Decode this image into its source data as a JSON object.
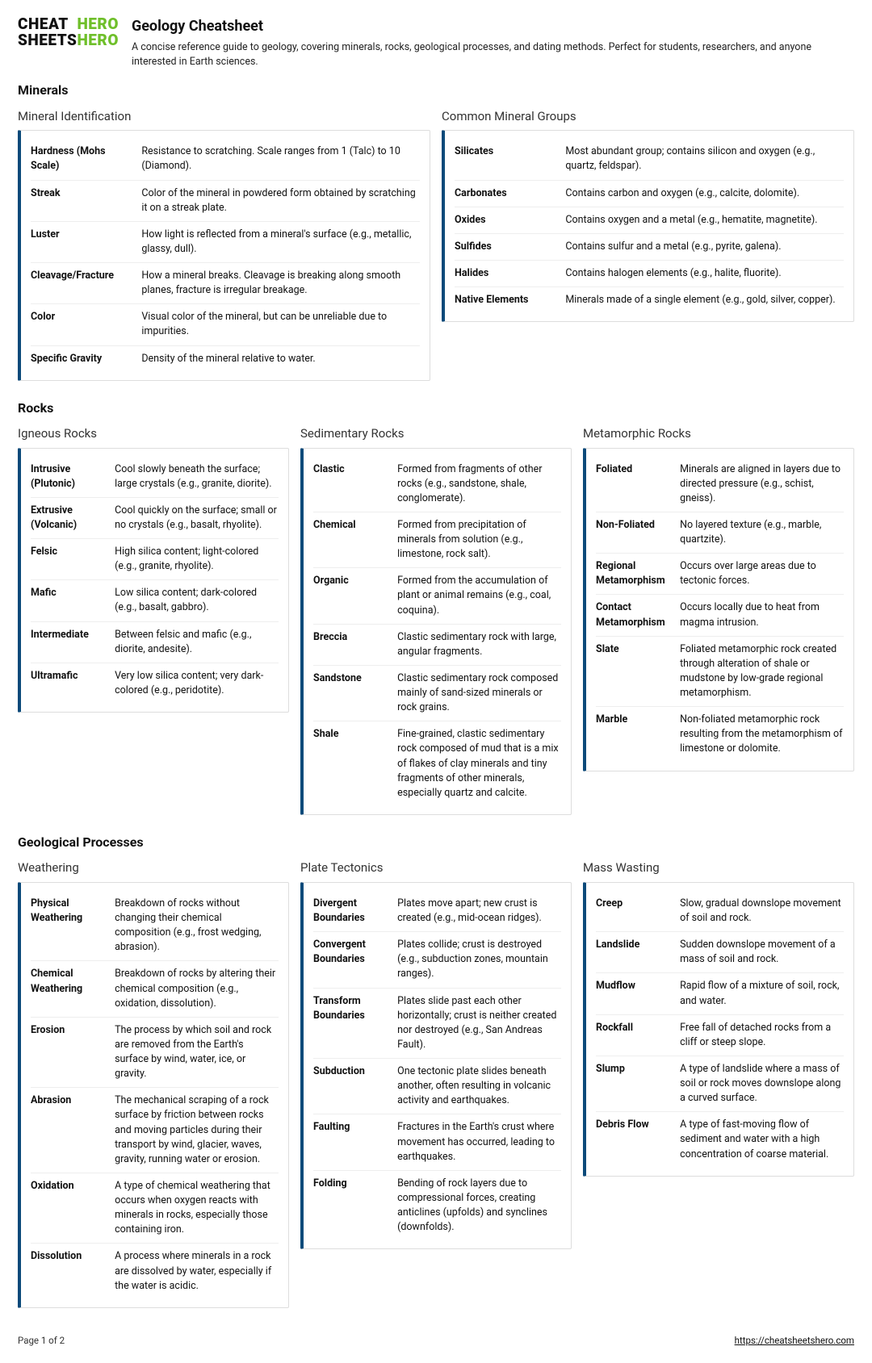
{
  "logo": {
    "l1a": "CHEAT",
    "l1b": "HERO",
    "l2a": "SHEETS",
    "l2b": "HERO"
  },
  "title": "Geology Cheatsheet",
  "subtitle": "A concise reference guide to geology, covering minerals, rocks, geological processes, and dating methods. Perfect for students, researchers, and anyone interested in Earth sciences.",
  "sections": {
    "minerals": {
      "heading": "Minerals",
      "left": {
        "title": "Mineral Identification",
        "rows": [
          {
            "t": "Hardness (Mohs Scale)",
            "d": "Resistance to scratching. Scale ranges from 1 (Talc) to 10 (Diamond)."
          },
          {
            "t": "Streak",
            "d": "Color of the mineral in powdered form obtained by scratching it on a streak plate."
          },
          {
            "t": "Luster",
            "d": "How light is reflected from a mineral's surface (e.g., metallic, glassy, dull)."
          },
          {
            "t": "Cleavage/Fracture",
            "d": "How a mineral breaks. Cleavage is breaking along smooth planes, fracture is irregular breakage."
          },
          {
            "t": "Color",
            "d": "Visual color of the mineral, but can be unreliable due to impurities."
          },
          {
            "t": "Specific Gravity",
            "d": "Density of the mineral relative to water."
          }
        ]
      },
      "right": {
        "title": "Common Mineral Groups",
        "rows": [
          {
            "t": "Silicates",
            "d": "Most abundant group; contains silicon and oxygen (e.g., quartz, feldspar)."
          },
          {
            "t": "Carbonates",
            "d": "Contains carbon and oxygen (e.g., calcite, dolomite)."
          },
          {
            "t": "Oxides",
            "d": "Contains oxygen and a metal (e.g., hematite, magnetite)."
          },
          {
            "t": "Sulfides",
            "d": "Contains sulfur and a metal (e.g., pyrite, galena)."
          },
          {
            "t": "Halides",
            "d": "Contains halogen elements (e.g., halite, fluorite)."
          },
          {
            "t": "Native Elements",
            "d": "Minerals made of a single element (e.g., gold, silver, copper)."
          }
        ]
      }
    },
    "rocks": {
      "heading": "Rocks",
      "c1": {
        "title": "Igneous Rocks",
        "rows": [
          {
            "t": "Intrusive (Plutonic)",
            "d": "Cool slowly beneath the surface; large crystals (e.g., granite, diorite)."
          },
          {
            "t": "Extrusive (Volcanic)",
            "d": "Cool quickly on the surface; small or no crystals (e.g., basalt, rhyolite)."
          },
          {
            "t": "Felsic",
            "d": "High silica content; light-colored (e.g., granite, rhyolite)."
          },
          {
            "t": "Mafic",
            "d": "Low silica content; dark-colored (e.g., basalt, gabbro)."
          },
          {
            "t": "Intermediate",
            "d": "Between felsic and mafic (e.g., diorite, andesite)."
          },
          {
            "t": "Ultramafic",
            "d": "Very low silica content; very dark-colored (e.g., peridotite)."
          }
        ]
      },
      "c2": {
        "title": "Sedimentary Rocks",
        "rows": [
          {
            "t": "Clastic",
            "d": "Formed from fragments of other rocks (e.g., sandstone, shale, conglomerate)."
          },
          {
            "t": "Chemical",
            "d": "Formed from precipitation of minerals from solution (e.g., limestone, rock salt)."
          },
          {
            "t": "Organic",
            "d": "Formed from the accumulation of plant or animal remains (e.g., coal, coquina)."
          },
          {
            "t": "Breccia",
            "d": "Clastic sedimentary rock with large, angular fragments."
          },
          {
            "t": "Sandstone",
            "d": "Clastic sedimentary rock composed mainly of sand-sized minerals or rock grains."
          },
          {
            "t": "Shale",
            "d": "Fine-grained, clastic sedimentary rock composed of mud that is a mix of flakes of clay minerals and tiny fragments of other minerals, especially quartz and calcite."
          }
        ]
      },
      "c3": {
        "title": "Metamorphic Rocks",
        "rows": [
          {
            "t": "Foliated",
            "d": "Minerals are aligned in layers due to directed pressure (e.g., schist, gneiss)."
          },
          {
            "t": "Non-Foliated",
            "d": "No layered texture (e.g., marble, quartzite)."
          },
          {
            "t": "Regional Metamorphism",
            "d": "Occurs over large areas due to tectonic forces."
          },
          {
            "t": "Contact Metamorphism",
            "d": "Occurs locally due to heat from magma intrusion."
          },
          {
            "t": "Slate",
            "d": "Foliated metamorphic rock created through alteration of shale or mudstone by low-grade regional metamorphism."
          },
          {
            "t": "Marble",
            "d": "Non-foliated metamorphic rock resulting from the metamorphism of limestone or dolomite."
          }
        ]
      }
    },
    "processes": {
      "heading": "Geological Processes",
      "c1": {
        "title": "Weathering",
        "rows": [
          {
            "t": "Physical Weathering",
            "d": "Breakdown of rocks without changing their chemical composition (e.g., frost wedging, abrasion)."
          },
          {
            "t": "Chemical Weathering",
            "d": "Breakdown of rocks by altering their chemical composition (e.g., oxidation, dissolution)."
          },
          {
            "t": "Erosion",
            "d": "The process by which soil and rock are removed from the Earth's surface by wind, water, ice, or gravity."
          },
          {
            "t": "Abrasion",
            "d": "The mechanical scraping of a rock surface by friction between rocks and moving particles during their transport by wind, glacier, waves, gravity, running water or erosion."
          },
          {
            "t": "Oxidation",
            "d": "A type of chemical weathering that occurs when oxygen reacts with minerals in rocks, especially those containing iron."
          },
          {
            "t": "Dissolution",
            "d": "A process where minerals in a rock are dissolved by water, especially if the water is acidic."
          }
        ]
      },
      "c2": {
        "title": "Plate Tectonics",
        "rows": [
          {
            "t": "Divergent Boundaries",
            "d": "Plates move apart; new crust is created (e.g., mid-ocean ridges)."
          },
          {
            "t": "Convergent Boundaries",
            "d": "Plates collide; crust is destroyed (e.g., subduction zones, mountain ranges)."
          },
          {
            "t": "Transform Boundaries",
            "d": "Plates slide past each other horizontally; crust is neither created nor destroyed (e.g., San Andreas Fault)."
          },
          {
            "t": "Subduction",
            "d": "One tectonic plate slides beneath another, often resulting in volcanic activity and earthquakes."
          },
          {
            "t": "Faulting",
            "d": "Fractures in the Earth's crust where movement has occurred, leading to earthquakes."
          },
          {
            "t": "Folding",
            "d": "Bending of rock layers due to compressional forces, creating anticlines (upfolds) and synclines (downfolds)."
          }
        ]
      },
      "c3": {
        "title": "Mass Wasting",
        "rows": [
          {
            "t": "Creep",
            "d": "Slow, gradual downslope movement of soil and rock."
          },
          {
            "t": "Landslide",
            "d": "Sudden downslope movement of a mass of soil and rock."
          },
          {
            "t": "Mudflow",
            "d": "Rapid flow of a mixture of soil, rock, and water."
          },
          {
            "t": "Rockfall",
            "d": "Free fall of detached rocks from a cliff or steep slope."
          },
          {
            "t": "Slump",
            "d": "A type of landslide where a mass of soil or rock moves downslope along a curved surface."
          },
          {
            "t": "Debris Flow",
            "d": "A type of fast-moving flow of sediment and water with a high concentration of coarse material."
          }
        ]
      }
    }
  },
  "footer": {
    "page": "Page 1 of 2",
    "url": "https://cheatsheetshero.com"
  },
  "colors": {
    "accent": "#0b4a7a",
    "logo_green": "#6fbf2a",
    "border": "#ddd",
    "rowline": "#eee"
  }
}
